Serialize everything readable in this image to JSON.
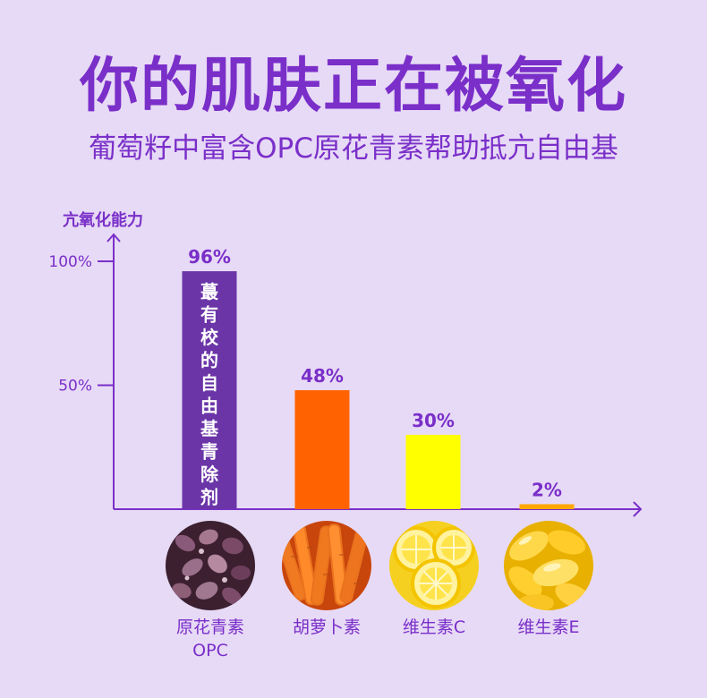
{
  "header": {
    "title": "你的肌肤正在被氧化",
    "subtitle": "葡萄籽中富含OPC原花青素帮助抵亢自由基"
  },
  "chart_data": {
    "type": "bar",
    "ylabel": "亢氧化能力",
    "ylim": [
      0,
      100
    ],
    "y_ticks": [
      {
        "value": 100,
        "label": "100%"
      },
      {
        "value": 50,
        "label": "50%"
      }
    ],
    "categories": [
      "原花青素 OPC",
      "胡萝卜素",
      "维生素C",
      "维生素E"
    ],
    "values": [
      96,
      48,
      30,
      2
    ],
    "value_labels": [
      "96%",
      "48%",
      "30%",
      "2%"
    ],
    "bar_colors": [
      "#6b35a8",
      "#ff6200",
      "#ffff00",
      "#ffa800"
    ],
    "bar_inner_text": "蕞有校的自由基青除剂",
    "grid": false
  },
  "items": [
    {
      "label_line1": "原花青素",
      "label_line2": "OPC",
      "image": "grape-seeds"
    },
    {
      "label_line1": "胡萝卜素",
      "label_line2": "",
      "image": "carrots"
    },
    {
      "label_line1": "维生素C",
      "label_line2": "",
      "image": "lemon-slices"
    },
    {
      "label_line1": "维生素E",
      "label_line2": "",
      "image": "vitamin-e-capsules"
    }
  ]
}
